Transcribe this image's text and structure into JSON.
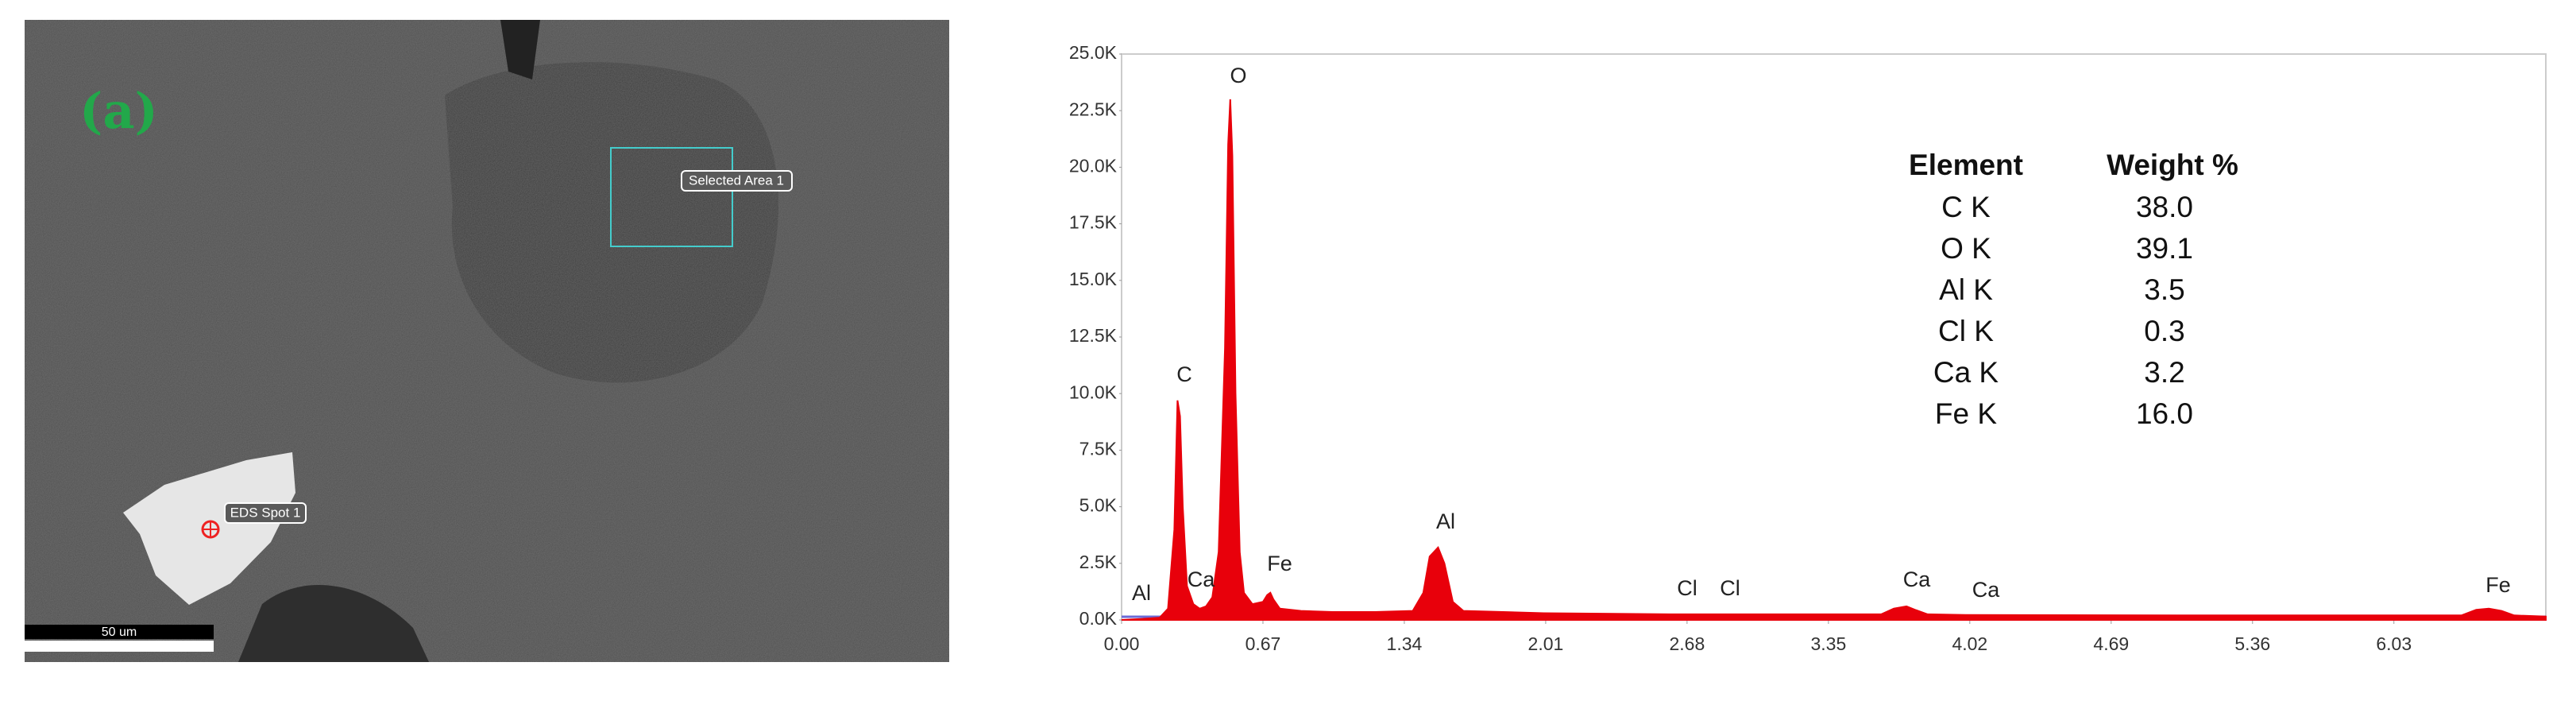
{
  "image": {
    "panel_label": "(a)",
    "selected_area": "Selected Area 1",
    "spot": "EDS Spot 1",
    "scale_bar": "50 um"
  },
  "chart_data": {
    "type": "area",
    "xlim": [
      0,
      6.75
    ],
    "ylim": [
      0,
      25000
    ],
    "xticks": [
      {
        "value": 0,
        "label": "0.00"
      },
      0.67,
      1.34,
      2.01,
      2.68,
      3.35,
      4.02,
      4.69,
      5.36,
      6.03
    ],
    "yticks": [
      {
        "value": 0,
        "label": "0.0K"
      },
      {
        "value": 2500,
        "label": "2.5K"
      },
      {
        "value": 5000,
        "label": "5.0K"
      },
      {
        "value": 7500,
        "label": "7.5K"
      },
      {
        "value": 10000,
        "label": "10.0K"
      },
      {
        "value": 12500,
        "label": "12.5K"
      },
      {
        "value": 15000,
        "label": "15.0K"
      },
      {
        "value": 17500,
        "label": "17.5K"
      },
      {
        "value": 20000,
        "label": "20.0K"
      },
      {
        "value": 22500,
        "label": "22.5K"
      },
      {
        "value": 25000,
        "label": "25.0K"
      }
    ],
    "series": [
      {
        "color": "#e8000b",
        "x": [
          0,
          0.1,
          0.18,
          0.22,
          0.25,
          0.265,
          0.277,
          0.29,
          0.31,
          0.34,
          0.37,
          0.4,
          0.43,
          0.46,
          0.49,
          0.505,
          0.515,
          0.525,
          0.54,
          0.56,
          0.58,
          0.62,
          0.67,
          0.69,
          0.705,
          0.72,
          0.75,
          0.85,
          1.0,
          1.2,
          1.38,
          1.43,
          1.46,
          1.5,
          1.53,
          1.57,
          1.62,
          2.0,
          2.6,
          3.0,
          3.6,
          3.66,
          3.72,
          3.76,
          3.82,
          4.0,
          5.0,
          6.35,
          6.42,
          6.48,
          6.54,
          6.6,
          6.75
        ],
        "values": [
          0,
          50,
          100,
          500,
          4000,
          9700,
          9000,
          5000,
          1500,
          700,
          500,
          600,
          1000,
          3000,
          12000,
          21000,
          23000,
          20500,
          10000,
          3000,
          1200,
          700,
          800,
          1100,
          1200,
          900,
          500,
          400,
          350,
          350,
          400,
          1200,
          2800,
          3200,
          2500,
          800,
          400,
          300,
          250,
          250,
          250,
          500,
          600,
          450,
          250,
          220,
          200,
          200,
          450,
          500,
          400,
          200,
          150
        ]
      }
    ],
    "annotations": [
      "Al",
      "Ca",
      "Fe",
      "C",
      "O",
      "Al",
      "Cl",
      "Cl",
      "Ca",
      "Ca",
      "Fe"
    ],
    "table": {
      "columns": [
        "Element",
        "Weight %"
      ],
      "rows": [
        [
          "C K",
          "38.0"
        ],
        [
          "O K",
          "39.1"
        ],
        [
          "Al K",
          "3.5"
        ],
        [
          "Cl K",
          "0.3"
        ],
        [
          "Ca K",
          "3.2"
        ],
        [
          "Fe K",
          "16.0"
        ]
      ]
    }
  }
}
